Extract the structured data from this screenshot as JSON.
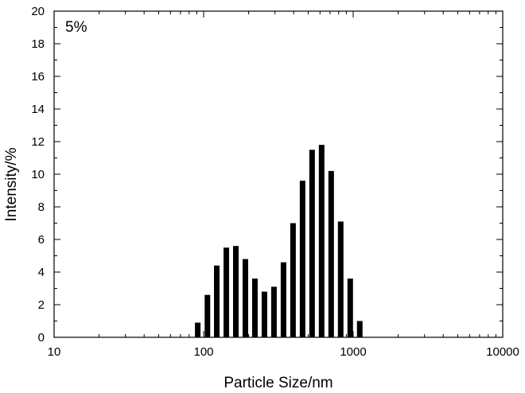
{
  "chart_data": {
    "type": "bar",
    "xscale": "log",
    "xlim": [
      10,
      10000
    ],
    "ylim": [
      0,
      20
    ],
    "xlabel": "Particle Size/nm",
    "ylabel": "Intensity/%",
    "annotation": "5%",
    "grid": false,
    "legend": "none",
    "bar_color": "#000000",
    "x": [
      91.3,
      106,
      122.4,
      141.8,
      164.2,
      190.1,
      220.2,
      255,
      295.3,
      342,
      396.1,
      458.7,
      531.2,
      615.1,
      712.4,
      825,
      955.4,
      1106
    ],
    "values": [
      0.9,
      2.6,
      4.4,
      5.5,
      5.6,
      4.8,
      3.6,
      2.8,
      3.1,
      4.6,
      7.0,
      9.6,
      11.5,
      11.8,
      10.2,
      7.1,
      3.6,
      1.0
    ],
    "xticks": [
      {
        "value": 10,
        "label": "10"
      },
      {
        "value": 100,
        "label": "100"
      },
      {
        "value": 1000,
        "label": "1000"
      },
      {
        "value": 10000,
        "label": "10000"
      }
    ],
    "yticks": [
      {
        "value": 0,
        "label": "0"
      },
      {
        "value": 2,
        "label": "2"
      },
      {
        "value": 4,
        "label": "4"
      },
      {
        "value": 6,
        "label": "6"
      },
      {
        "value": 8,
        "label": "8"
      },
      {
        "value": 10,
        "label": "10"
      },
      {
        "value": 12,
        "label": "12"
      },
      {
        "value": 14,
        "label": "14"
      },
      {
        "value": 16,
        "label": "16"
      },
      {
        "value": 18,
        "label": "18"
      },
      {
        "value": 20,
        "label": "20"
      }
    ]
  }
}
